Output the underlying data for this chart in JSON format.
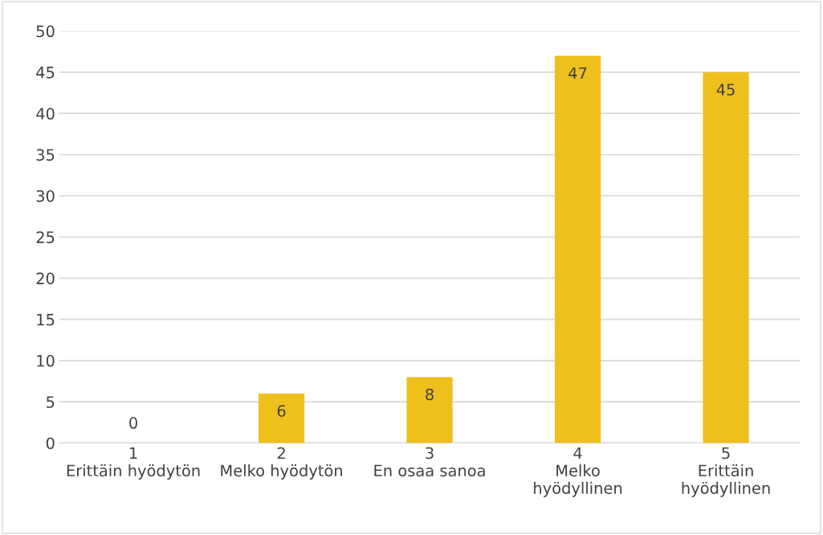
{
  "chart_data": {
    "type": "bar",
    "categories": [
      "1\nErittäin hyödytön",
      "2\nMelko hyödytön",
      "3\nEn osaa sanoa",
      "4\nMelko\nhyödyllinen",
      "5\nErittäin\nhyödyllinen"
    ],
    "values": [
      0,
      6,
      8,
      47,
      45
    ],
    "color": "#edc01b",
    "ylim": [
      0,
      50
    ],
    "yticks": [
      0,
      5,
      10,
      15,
      20,
      25,
      30,
      35,
      40,
      45,
      50
    ],
    "grid": "y",
    "data_labels": true,
    "legend": false
  }
}
